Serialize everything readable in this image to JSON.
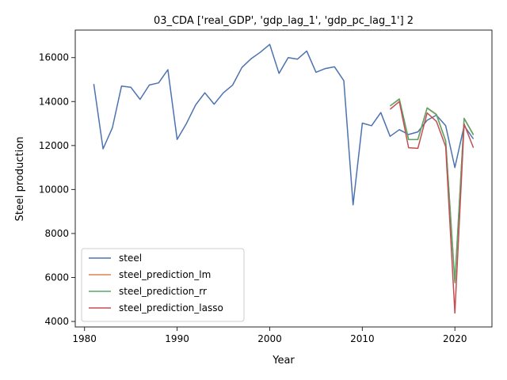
{
  "chart_data": {
    "type": "line",
    "title": "03_CDA ['real_GDP', 'gdp_lag_1', 'gdp_pc_lag_1'] 2",
    "xlabel": "Year",
    "ylabel": "Steel production",
    "xlim": [
      1979,
      2024
    ],
    "ylim": [
      3750,
      17250
    ],
    "xticks": [
      1980,
      1990,
      2000,
      2010,
      2020
    ],
    "yticks": [
      4000,
      6000,
      8000,
      10000,
      12000,
      14000,
      16000
    ],
    "grid": false,
    "legend_position": "lower-left",
    "series": [
      {
        "name": "steel",
        "color": "#4c72b0",
        "x": [
          1981,
          1982,
          1983,
          1984,
          1985,
          1986,
          1987,
          1988,
          1989,
          1990,
          1991,
          1992,
          1993,
          1994,
          1995,
          1996,
          1997,
          1998,
          1999,
          2000,
          2001,
          2002,
          2003,
          2004,
          2005,
          2006,
          2007,
          2008,
          2009,
          2010,
          2011,
          2012,
          2013,
          2014,
          2015,
          2016,
          2017,
          2018,
          2019,
          2020,
          2021,
          2022
        ],
        "y": [
          14800,
          11850,
          12800,
          14700,
          14650,
          14100,
          14750,
          14850,
          15450,
          12280,
          13000,
          13850,
          14400,
          13880,
          14400,
          14750,
          15550,
          15950,
          16250,
          16600,
          15280,
          16000,
          15930,
          16300,
          15330,
          15500,
          15580,
          14950,
          9300,
          13020,
          12900,
          13500,
          12420,
          12720,
          12500,
          12620,
          13150,
          13380,
          12900,
          11000,
          12900,
          12300
        ]
      },
      {
        "name": "steel_prediction_lm",
        "color": "#dd8452",
        "x": [
          2013,
          2014,
          2015,
          2016,
          2017,
          2018,
          2019,
          2020,
          2021,
          2022
        ],
        "y": [
          13800,
          14100,
          12270,
          12280,
          13720,
          13420,
          12220,
          5750,
          13240,
          12500
        ]
      },
      {
        "name": "steel_prediction_rr",
        "color": "#55a868",
        "x": [
          2013,
          2014,
          2015,
          2016,
          2017,
          2018,
          2019,
          2020,
          2021,
          2022
        ],
        "y": [
          13800,
          14120,
          12270,
          12270,
          13700,
          13400,
          12200,
          5800,
          13230,
          12480
        ]
      },
      {
        "name": "steel_prediction_lasso",
        "color": "#c44e52",
        "x": [
          2013,
          2014,
          2015,
          2016,
          2017,
          2018,
          2019,
          2020,
          2021,
          2022
        ],
        "y": [
          13650,
          14000,
          11900,
          11870,
          13480,
          13100,
          11950,
          4380,
          12980,
          11900
        ]
      }
    ]
  }
}
